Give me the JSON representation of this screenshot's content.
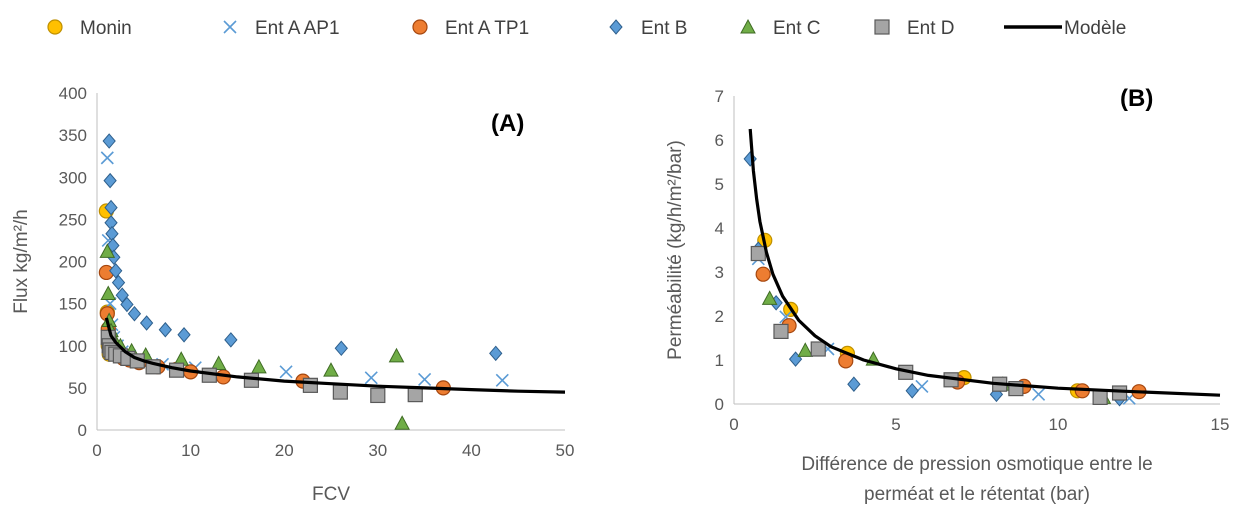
{
  "legend": [
    {
      "name": "Monin",
      "marker": "circle",
      "color": "#FFC000",
      "stroke": "#BF9000"
    },
    {
      "name": "Ent A AP1",
      "marker": "x",
      "color": "#5B9BD5",
      "stroke": "#5B9BD5"
    },
    {
      "name": "Ent A TP1",
      "marker": "circle",
      "color": "#ED7D31",
      "stroke": "#A5470F"
    },
    {
      "name": "Ent B",
      "marker": "diamond",
      "color": "#5B9BD5",
      "stroke": "#2E5F8C"
    },
    {
      "name": "Ent C",
      "marker": "triangle",
      "color": "#70AD47",
      "stroke": "#3F6B24"
    },
    {
      "name": "Ent D",
      "marker": "square",
      "color": "#A5A5A5",
      "stroke": "#595959"
    },
    {
      "name": "Modèle",
      "marker": "line",
      "color": "#000000",
      "stroke": "#000000"
    }
  ],
  "chart_data": [
    {
      "type": "scatter",
      "panel_label": "(A)",
      "xlabel": "FCV",
      "ylabel": "Flux kg/m²/h",
      "xlim": [
        0,
        50
      ],
      "ylim": [
        0,
        400
      ],
      "xticks": [
        0,
        10,
        20,
        30,
        40,
        50
      ],
      "yticks": [
        0,
        50,
        100,
        150,
        200,
        250,
        300,
        350,
        400
      ],
      "grid": false,
      "series": [
        {
          "name": "Monin",
          "points": [
            [
              1.0,
              260
            ],
            [
              1.1,
              140
            ],
            [
              1.2,
              100
            ],
            [
              1.3,
              90
            ]
          ]
        },
        {
          "name": "Ent A AP1",
          "points": [
            [
              1.1,
              323
            ],
            [
              1.2,
              225
            ],
            [
              1.4,
              150
            ],
            [
              1.6,
              125
            ],
            [
              1.8,
              110
            ],
            [
              2.2,
              100
            ],
            [
              2.7,
              93
            ],
            [
              3.5,
              88
            ],
            [
              5,
              83
            ],
            [
              7,
              78
            ],
            [
              10.5,
              74
            ],
            [
              20.2,
              69
            ],
            [
              29.3,
              62
            ],
            [
              35,
              60
            ],
            [
              43.3,
              59
            ]
          ]
        },
        {
          "name": "Ent A TP1",
          "points": [
            [
              1.0,
              187
            ],
            [
              1.1,
              138
            ],
            [
              1.2,
              120
            ],
            [
              1.4,
              105
            ],
            [
              1.7,
              96
            ],
            [
              2.2,
              90
            ],
            [
              2.8,
              85
            ],
            [
              3.5,
              83
            ],
            [
              4.5,
              80
            ],
            [
              6.5,
              75
            ],
            [
              8.5,
              72
            ],
            [
              10,
              69
            ],
            [
              13.5,
              63
            ],
            [
              22,
              58
            ],
            [
              37,
              50
            ]
          ]
        },
        {
          "name": "Ent B",
          "points": [
            [
              1.3,
              343
            ],
            [
              1.4,
              296
            ],
            [
              1.5,
              264
            ],
            [
              1.5,
              246
            ],
            [
              1.6,
              233
            ],
            [
              1.7,
              219
            ],
            [
              1.8,
              205
            ],
            [
              2.0,
              189
            ],
            [
              2.3,
              175
            ],
            [
              2.7,
              160
            ],
            [
              3.2,
              149
            ],
            [
              4.0,
              138
            ],
            [
              5.3,
              127
            ],
            [
              7.3,
              119
            ],
            [
              9.3,
              113
            ],
            [
              14.3,
              107
            ],
            [
              26.1,
              97
            ],
            [
              42.6,
              91
            ]
          ]
        },
        {
          "name": "Ent C",
          "points": [
            [
              1.1,
              212
            ],
            [
              1.2,
              162
            ],
            [
              1.3,
              130
            ],
            [
              1.5,
              118
            ],
            [
              1.8,
              108
            ],
            [
              2.5,
              100
            ],
            [
              3.7,
              94
            ],
            [
              5.2,
              89
            ],
            [
              9,
              84
            ],
            [
              13,
              79
            ],
            [
              17.3,
              75
            ],
            [
              25,
              71
            ],
            [
              32,
              88
            ],
            [
              32.6,
              8
            ]
          ]
        },
        {
          "name": "Ent D",
          "points": [
            [
              1.2,
              110
            ],
            [
              1.3,
              100
            ],
            [
              1.4,
              95
            ],
            [
              1.6,
              92
            ],
            [
              2.0,
              90
            ],
            [
              2.5,
              88
            ],
            [
              3.3,
              85
            ],
            [
              4.3,
              82
            ],
            [
              6.0,
              75
            ],
            [
              8.5,
              71
            ],
            [
              12,
              65
            ],
            [
              16.5,
              59
            ],
            [
              22.8,
              53
            ],
            [
              26,
              45
            ],
            [
              30,
              41
            ],
            [
              34,
              42
            ]
          ]
        }
      ],
      "model": [
        [
          1,
          133
        ],
        [
          1.5,
          112
        ],
        [
          2,
          104
        ],
        [
          3,
          93
        ],
        [
          4,
          86
        ],
        [
          5,
          82
        ],
        [
          6,
          79
        ],
        [
          8,
          74
        ],
        [
          10,
          70
        ],
        [
          15,
          63
        ],
        [
          20,
          58
        ],
        [
          25,
          55
        ],
        [
          30,
          52
        ],
        [
          35,
          50
        ],
        [
          40,
          48
        ],
        [
          45,
          46
        ],
        [
          50,
          45
        ]
      ]
    },
    {
      "type": "scatter",
      "panel_label": "(B)",
      "xlabel": "Différence de pression osmotique entre le perméat et le rétentat (bar)",
      "ylabel": "Perméabilité (kg/h/m²/bar)",
      "xlim": [
        0,
        15
      ],
      "ylim": [
        0,
        7
      ],
      "xticks": [
        0,
        5,
        10,
        15
      ],
      "yticks": [
        0,
        1,
        2,
        3,
        4,
        5,
        6,
        7
      ],
      "grid": false,
      "series": [
        {
          "name": "Monin",
          "points": [
            [
              0.95,
              3.72
            ],
            [
              1.75,
              2.15
            ],
            [
              3.5,
              1.15
            ],
            [
              7.1,
              0.6
            ],
            [
              10.6,
              0.3
            ]
          ]
        },
        {
          "name": "Ent A AP1",
          "points": [
            [
              0.75,
              3.3
            ],
            [
              1.6,
              1.98
            ],
            [
              2.9,
              1.25
            ],
            [
              5.8,
              0.4
            ],
            [
              9.4,
              0.22
            ],
            [
              12.2,
              0.13
            ]
          ]
        },
        {
          "name": "Ent A TP1",
          "points": [
            [
              0.9,
              2.95
            ],
            [
              1.7,
              1.78
            ],
            [
              3.45,
              0.98
            ],
            [
              6.9,
              0.5
            ],
            [
              8.95,
              0.4
            ],
            [
              10.75,
              0.3
            ],
            [
              12.5,
              0.28
            ]
          ]
        },
        {
          "name": "Ent B",
          "points": [
            [
              0.5,
              5.57
            ],
            [
              0.75,
              3.52
            ],
            [
              1.3,
              2.3
            ],
            [
              1.9,
              1.02
            ],
            [
              3.7,
              0.45
            ],
            [
              5.5,
              0.3
            ],
            [
              8.1,
              0.22
            ],
            [
              11.9,
              0.12
            ]
          ]
        },
        {
          "name": "Ent C",
          "points": [
            [
              1.1,
              2.4
            ],
            [
              2.2,
              1.22
            ],
            [
              4.3,
              1.02
            ],
            [
              8.3,
              0.45
            ],
            [
              11.4,
              0.15
            ]
          ]
        },
        {
          "name": "Ent D",
          "points": [
            [
              0.75,
              3.42
            ],
            [
              1.45,
              1.65
            ],
            [
              2.6,
              1.25
            ],
            [
              5.3,
              0.72
            ],
            [
              6.7,
              0.55
            ],
            [
              8.2,
              0.45
            ],
            [
              8.7,
              0.35
            ],
            [
              11.3,
              0.15
            ],
            [
              11.9,
              0.25
            ]
          ]
        }
      ],
      "model": [
        [
          0.5,
          6.25
        ],
        [
          0.6,
          5.3
        ],
        [
          0.7,
          4.65
        ],
        [
          0.8,
          4.15
        ],
        [
          1.0,
          3.45
        ],
        [
          1.2,
          2.95
        ],
        [
          1.5,
          2.45
        ],
        [
          2.0,
          1.9
        ],
        [
          2.5,
          1.55
        ],
        [
          3.0,
          1.3
        ],
        [
          4,
          1.0
        ],
        [
          5,
          0.8
        ],
        [
          6,
          0.65
        ],
        [
          8,
          0.47
        ],
        [
          10,
          0.36
        ],
        [
          12,
          0.29
        ],
        [
          15,
          0.2
        ]
      ]
    }
  ]
}
